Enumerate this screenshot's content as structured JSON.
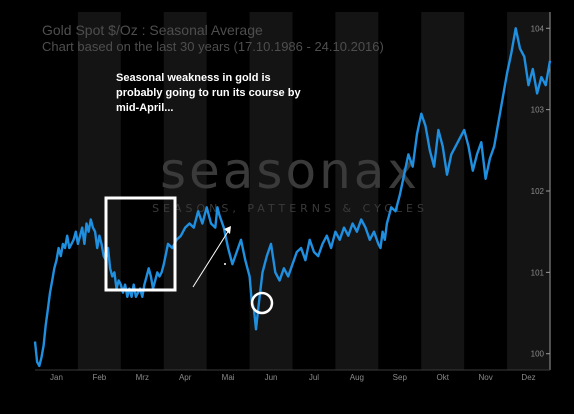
{
  "chart": {
    "title": "Gold Spot    $/Oz : Seasonal Average",
    "subtitle": "Chart based on the last 30 years (17.10.1986 - 24.10.2016)",
    "watermark": "seasonax",
    "watermark_tagline": "SEASONS, PATTERNS & CYCLES",
    "annotation_lines": [
      "Seasonal weakness in gold is",
      "probably going to run its course by",
      "mid-April..."
    ],
    "colors": {
      "line": "#1f8fe0",
      "background": "#000000",
      "band": "#141414",
      "annotation": "#ffffff"
    }
  },
  "chart_data": {
    "type": "line",
    "title": "Gold Spot $/Oz : Seasonal Average",
    "subtitle": "Chart based on the last 30 years (17.10.1986 - 24.10.2016)",
    "xlabel": "",
    "ylabel": "",
    "x_tick_labels": [
      "Jan",
      "Feb",
      "Mrz",
      "Apr",
      "Mai",
      "Jun",
      "Jul",
      "Aug",
      "Sep",
      "Okt",
      "Nov",
      "Dez"
    ],
    "y_ticks": [
      100,
      101,
      102,
      103,
      104
    ],
    "ylim": [
      99.8,
      104.2
    ],
    "xlim": [
      0,
      12
    ],
    "grid": false,
    "series": [
      {
        "x": [
          0.0,
          0.05,
          0.1,
          0.15,
          0.2,
          0.25,
          0.3,
          0.35,
          0.4,
          0.45,
          0.5,
          0.55,
          0.6,
          0.65,
          0.7,
          0.75,
          0.8,
          0.85,
          0.9,
          0.95,
          1.0,
          1.05,
          1.1,
          1.15,
          1.2,
          1.25,
          1.3,
          1.35,
          1.4,
          1.45,
          1.5,
          1.55,
          1.6,
          1.65,
          1.7,
          1.75,
          1.8,
          1.85,
          1.9,
          1.95,
          2.0,
          2.05,
          2.1,
          2.15,
          2.2,
          2.25,
          2.3,
          2.35,
          2.4,
          2.45,
          2.5,
          2.55,
          2.6,
          2.65,
          2.7,
          2.75,
          2.8,
          2.85,
          2.9,
          2.95,
          3.0,
          3.1,
          3.2,
          3.3,
          3.4,
          3.5,
          3.6,
          3.7,
          3.8,
          3.9,
          4.0,
          4.1,
          4.2,
          4.25,
          4.3,
          4.4,
          4.5,
          4.6,
          4.7,
          4.8,
          4.9,
          5.0,
          5.05,
          5.1,
          5.15,
          5.2,
          5.3,
          5.4,
          5.5,
          5.6,
          5.7,
          5.8,
          5.9,
          6.0,
          6.1,
          6.2,
          6.3,
          6.4,
          6.5,
          6.6,
          6.7,
          6.8,
          6.9,
          7.0,
          7.1,
          7.2,
          7.3,
          7.4,
          7.5,
          7.6,
          7.7,
          7.8,
          7.9,
          8.0,
          8.05,
          8.1,
          8.15,
          8.2,
          8.25,
          8.3,
          8.4,
          8.5,
          8.6,
          8.7,
          8.8,
          8.9,
          9.0,
          9.1,
          9.2,
          9.3,
          9.4,
          9.5,
          9.6,
          9.7,
          9.8,
          9.9,
          10.0,
          10.1,
          10.2,
          10.3,
          10.4,
          10.5,
          10.6,
          10.7,
          10.8,
          10.9,
          11.0,
          11.1,
          11.2,
          11.3,
          11.4,
          11.5,
          11.6,
          11.7,
          11.8,
          11.9,
          12.0
        ],
        "y": [
          100.15,
          99.9,
          99.85,
          99.95,
          100.1,
          100.35,
          100.55,
          100.75,
          100.9,
          101.05,
          101.15,
          101.3,
          101.2,
          101.35,
          101.3,
          101.45,
          101.3,
          101.35,
          101.4,
          101.5,
          101.35,
          101.45,
          101.55,
          101.35,
          101.6,
          101.5,
          101.65,
          101.55,
          101.5,
          101.3,
          101.45,
          101.35,
          101.2,
          101.15,
          101.3,
          101.05,
          100.95,
          101.0,
          100.8,
          100.9,
          100.85,
          100.75,
          100.85,
          100.7,
          100.8,
          100.7,
          100.85,
          100.7,
          100.75,
          100.8,
          100.7,
          100.85,
          100.95,
          101.05,
          100.95,
          100.8,
          100.9,
          101.0,
          100.95,
          101.0,
          101.1,
          101.35,
          101.3,
          101.4,
          101.45,
          101.55,
          101.6,
          101.55,
          101.75,
          101.6,
          101.8,
          101.6,
          101.55,
          101.8,
          101.7,
          101.55,
          101.3,
          101.1,
          101.25,
          101.4,
          101.15,
          100.95,
          100.65,
          100.55,
          100.3,
          100.55,
          101.0,
          101.2,
          101.35,
          101.0,
          100.9,
          101.05,
          100.95,
          101.1,
          101.25,
          101.3,
          101.15,
          101.4,
          101.25,
          101.2,
          101.35,
          101.45,
          101.3,
          101.5,
          101.4,
          101.55,
          101.45,
          101.6,
          101.5,
          101.65,
          101.55,
          101.4,
          101.5,
          101.35,
          101.3,
          101.5,
          101.4,
          101.6,
          101.7,
          101.8,
          101.75,
          101.95,
          102.2,
          102.45,
          102.3,
          102.7,
          102.95,
          102.8,
          102.5,
          102.3,
          102.75,
          102.55,
          102.2,
          102.45,
          102.55,
          102.65,
          102.75,
          102.55,
          102.25,
          102.45,
          102.6,
          102.15,
          102.4,
          102.55,
          102.85,
          103.15,
          103.45,
          103.7,
          104.0,
          103.75,
          103.65,
          103.3,
          103.5,
          103.2,
          103.4,
          103.3,
          103.6
        ]
      }
    ]
  }
}
